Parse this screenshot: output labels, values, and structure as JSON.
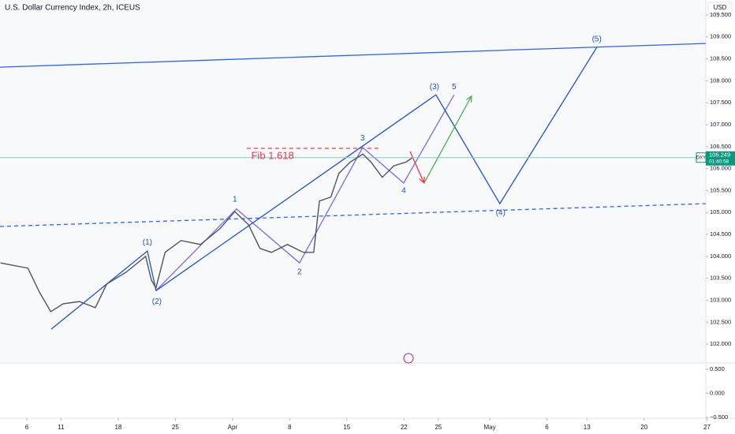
{
  "chart_data": {
    "type": "line",
    "title": "U.S. Dollar Currency Index, 2h, ICEUS",
    "currency": "USD",
    "symbol": "DXY",
    "last_price": {
      "value": 106.249,
      "label": "106.249"
    },
    "countdown": "01:40:58",
    "x": [
      -2.3,
      0.1,
      1.1,
      2.1,
      3.2,
      4.6,
      6.0,
      7.0,
      8.7,
      10.4,
      10.9,
      11.3,
      12.1,
      13.5,
      15.2,
      16.9,
      18.2,
      19.4,
      20.4,
      21.4,
      22.8,
      24.2,
      25.1,
      25.6,
      26.6,
      27.3,
      28.3,
      29.4,
      30.1,
      31.1,
      32.1,
      33.2,
      33.7
    ],
    "values": [
      103.85,
      103.73,
      103.19,
      102.74,
      102.92,
      102.97,
      102.83,
      103.37,
      103.64,
      104.0,
      103.46,
      103.28,
      104.09,
      104.36,
      104.27,
      104.63,
      105.02,
      104.72,
      104.18,
      104.09,
      104.27,
      104.09,
      104.09,
      105.26,
      105.35,
      105.89,
      106.15,
      106.33,
      106.15,
      105.8,
      106.06,
      106.15,
      106.24
    ],
    "color": "#50535e",
    "xlim": [
      -2.34,
      59.4
    ],
    "ylim": [
      101.57,
      109.84
    ],
    "xticks": [
      {
        "value": 0,
        "label": "6"
      },
      {
        "value": 3,
        "label": "11"
      },
      {
        "value": 8,
        "label": "18"
      },
      {
        "value": 13,
        "label": "25"
      },
      {
        "value": 18,
        "label": "Apr"
      },
      {
        "value": 23,
        "label": "8"
      },
      {
        "value": 28,
        "label": "15"
      },
      {
        "value": 33,
        "label": "22"
      },
      {
        "value": 36,
        "label": "25"
      },
      {
        "value": 40.5,
        "label": "May"
      },
      {
        "value": 45.5,
        "label": "6"
      },
      {
        "value": 49,
        "label": "13"
      },
      {
        "value": 54,
        "label": "20"
      },
      {
        "value": 59.5,
        "label": "27"
      }
    ],
    "yticks": [
      {
        "value": 102.0,
        "label": "102.000"
      },
      {
        "value": 102.5,
        "label": "102.500"
      },
      {
        "value": 103.0,
        "label": "103.000"
      },
      {
        "value": 103.5,
        "label": "103.500"
      },
      {
        "value": 104.0,
        "label": "104.000"
      },
      {
        "value": 104.5,
        "label": "104.500"
      },
      {
        "value": 105.0,
        "label": "105.000"
      },
      {
        "value": 105.5,
        "label": "105.500"
      },
      {
        "value": 106.0,
        "label": "106.000"
      },
      {
        "value": 106.5,
        "label": "106.500"
      },
      {
        "value": 107.0,
        "label": "107.000"
      },
      {
        "value": 107.5,
        "label": "107.500"
      },
      {
        "value": 108.0,
        "label": "108.000"
      },
      {
        "value": 108.5,
        "label": "108.500"
      },
      {
        "value": 109.0,
        "label": "109.000"
      },
      {
        "value": 109.5,
        "label": "109.500"
      }
    ],
    "lower_ylim": [
      -0.55,
      0.63
    ],
    "lower_yticks": [
      {
        "value": 0.5,
        "label": "0.500"
      },
      {
        "value": 0,
        "label": "0.000"
      },
      {
        "value": -0.5,
        "label": "−0.500"
      }
    ],
    "drawings": [
      {
        "color": "#2962ff",
        "dash": false,
        "x": [
          -2.34,
          59.38
        ],
        "y": [
          108.31,
          108.85
        ]
      },
      {
        "color": "#2962ff",
        "dash": true,
        "x": [
          -2.34,
          59.38
        ],
        "y": [
          104.68,
          105.2
        ]
      },
      {
        "color": "#f23645",
        "dash": true,
        "x": [
          19.24,
          30.76
        ],
        "y": [
          106.46,
          106.46
        ]
      },
      {
        "color": "#7b68ee",
        "dash": false,
        "x": [
          11.31,
          18.34,
          23.86,
          29.38,
          32.97,
          37.38
        ],
        "y": [
          103.22,
          105.08,
          103.85,
          106.48,
          105.67,
          107.68
        ]
      },
      {
        "color": "#1f4fd8",
        "dash": false,
        "x": [
          2.14,
          10.55,
          11.31,
          35.79,
          41.38,
          49.86
        ],
        "y": [
          102.34,
          104.12,
          103.22,
          107.68,
          105.2,
          108.76
        ]
      },
      {
        "color": "#f23645",
        "dash": false,
        "x": [
          33.52,
          34.76
        ],
        "y": [
          106.39,
          105.67
        ]
      },
      {
        "color": "#4caf50",
        "dash": false,
        "x": [
          34.76,
          38.9
        ],
        "y": [
          105.67,
          107.65
        ]
      }
    ],
    "labels": [
      {
        "text": "(1)",
        "x": 10.55,
        "y": 104.31,
        "color": "#1f4fd8"
      },
      {
        "text": "(2)",
        "x": 11.38,
        "y": 102.97,
        "color": "#1f4fd8"
      },
      {
        "text": "1",
        "x": 18.2,
        "y": 105.29,
        "color": "#1f4fd8"
      },
      {
        "text": "2",
        "x": 23.86,
        "y": 103.64,
        "color": "#1f4fd8"
      },
      {
        "text": "3",
        "x": 29.38,
        "y": 106.69,
        "color": "#1f4fd8"
      },
      {
        "text": "4",
        "x": 32.97,
        "y": 105.49,
        "color": "#1f4fd8"
      },
      {
        "text": "5",
        "x": 37.38,
        "y": 107.86,
        "color": "#1f4fd8"
      },
      {
        "text": "(3)",
        "x": 35.66,
        "y": 107.86,
        "color": "#1f4fd8"
      },
      {
        "text": "(4)",
        "x": 41.45,
        "y": 104.99,
        "color": "#1f4fd8"
      },
      {
        "text": "(5)",
        "x": 49.86,
        "y": 108.94,
        "color": "#1f4fd8"
      },
      {
        "text": "Fib 1.618",
        "x": 21.5,
        "y": 106.28,
        "color": "#f23645"
      }
    ]
  }
}
